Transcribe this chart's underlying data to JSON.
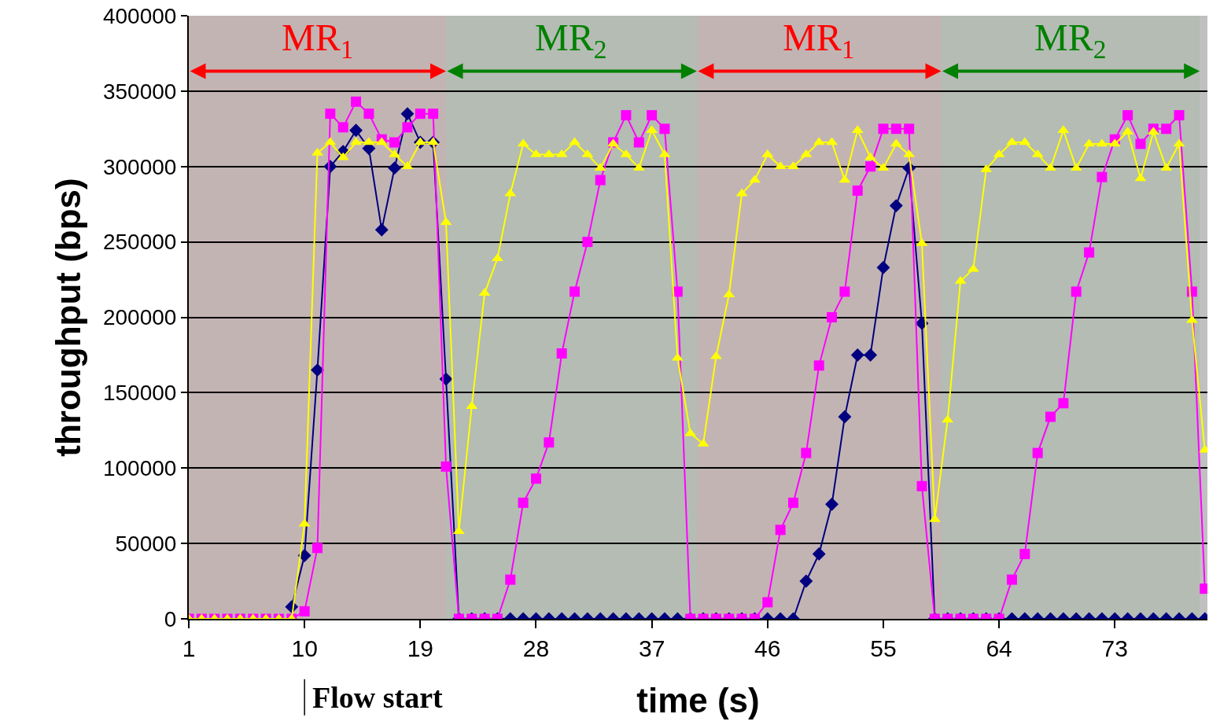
{
  "chart_data": {
    "type": "line",
    "xlabel": "time (s)",
    "ylabel": "throughput (bps)",
    "x": [
      1,
      2,
      3,
      4,
      5,
      6,
      7,
      8,
      9,
      10,
      11,
      12,
      13,
      14,
      15,
      16,
      17,
      18,
      19,
      20,
      21,
      22,
      23,
      24,
      25,
      26,
      27,
      28,
      29,
      30,
      31,
      32,
      33,
      34,
      35,
      36,
      37,
      38,
      39,
      40,
      41,
      42,
      43,
      44,
      45,
      46,
      47,
      48,
      49,
      50,
      51,
      52,
      53,
      54,
      55,
      56,
      57,
      58,
      59,
      60,
      61,
      62,
      63,
      64,
      65,
      66,
      67,
      68,
      69,
      70,
      71,
      72,
      73,
      74,
      75,
      76,
      77,
      78,
      79,
      80
    ],
    "series": [
      {
        "color": "#000080",
        "marker": "diamond",
        "values": [
          null,
          null,
          null,
          null,
          null,
          null,
          null,
          null,
          8000,
          42000,
          165000,
          300000,
          310000,
          324000,
          312000,
          258000,
          299000,
          335000,
          316000,
          316000,
          159000,
          0,
          0,
          0,
          0,
          0,
          0,
          0,
          0,
          0,
          0,
          0,
          0,
          0,
          0,
          0,
          0,
          0,
          0,
          0,
          0,
          0,
          0,
          0,
          0,
          0,
          0,
          0,
          25000,
          43000,
          76000,
          134000,
          175000,
          175000,
          233000,
          274000,
          299000,
          196000,
          0,
          0,
          0,
          0,
          0,
          0,
          0,
          0,
          0,
          0,
          0,
          0,
          0,
          0,
          0,
          0,
          0,
          0,
          0,
          0,
          0,
          0
        ]
      },
      {
        "color": "#ff00ff",
        "marker": "square",
        "values": [
          0,
          0,
          0,
          0,
          0,
          0,
          0,
          0,
          0,
          5000,
          47000,
          335000,
          326000,
          343000,
          335000,
          318000,
          316000,
          326000,
          335000,
          335000,
          101000,
          0,
          0,
          0,
          0,
          26000,
          77000,
          93000,
          117000,
          176000,
          217000,
          250000,
          291000,
          316000,
          334000,
          316000,
          334000,
          325000,
          217000,
          0,
          0,
          0,
          0,
          0,
          0,
          11000,
          59000,
          77000,
          110000,
          168000,
          200000,
          217000,
          284000,
          300000,
          325000,
          325000,
          325000,
          88000,
          0,
          0,
          0,
          0,
          0,
          0,
          26000,
          43000,
          110000,
          134000,
          143000,
          217000,
          243000,
          293000,
          318000,
          334000,
          315000,
          325000,
          325000,
          334000,
          217000,
          20000
        ]
      },
      {
        "color": "#ffff00",
        "marker": "triangle",
        "values": [
          0,
          0,
          0,
          0,
          0,
          0,
          0,
          0,
          0,
          63000,
          309000,
          316000,
          306000,
          316000,
          316000,
          316000,
          308000,
          300000,
          316000,
          316000,
          263000,
          58000,
          141000,
          216000,
          239000,
          282000,
          315000,
          308000,
          308000,
          308000,
          316000,
          308000,
          299000,
          315000,
          308000,
          299000,
          324000,
          308000,
          173000,
          123000,
          116000,
          174000,
          215000,
          282000,
          291000,
          308000,
          300000,
          300000,
          308000,
          316000,
          316000,
          291000,
          324000,
          306000,
          299000,
          315000,
          308000,
          249000,
          66000,
          132000,
          224000,
          232000,
          298000,
          308000,
          316000,
          316000,
          308000,
          299000,
          324000,
          299000,
          315000,
          315000,
          315000,
          323000,
          292000,
          323000,
          299000,
          315000,
          198000,
          112000
        ]
      }
    ],
    "xlim": [
      1,
      80.2
    ],
    "xticks": [
      1,
      10,
      19,
      28,
      37,
      46,
      55,
      64,
      73
    ],
    "ylim": [
      0,
      400000
    ],
    "yticks": [
      0,
      50000,
      100000,
      150000,
      200000,
      250000,
      300000,
      350000,
      400000
    ],
    "grid": "y",
    "line_style": "solid",
    "bands": [
      {
        "axis": "x",
        "from": 1,
        "to": 21,
        "label": "MR$_{1}$",
        "color": "#ff0000"
      },
      {
        "axis": "x",
        "from": 21,
        "to": 40.5,
        "label": "MR$_{2}$",
        "color": "#008000"
      },
      {
        "axis": "x",
        "from": 40.5,
        "to": 59.5,
        "label": "MR$_{1}$",
        "color": "#ff0000"
      },
      {
        "axis": "x",
        "from": 59.5,
        "to": 79.6,
        "label": "MR$_{2}$",
        "color": "#008000"
      }
    ],
    "ref_lines": [
      {
        "axis": "x",
        "value": 10,
        "label": "Flow start"
      }
    ]
  }
}
